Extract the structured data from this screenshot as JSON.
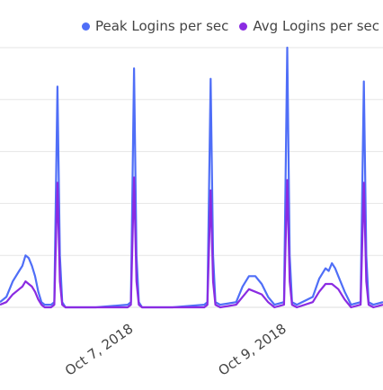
{
  "chart_data": {
    "type": "line",
    "title": "",
    "xlabel": "",
    "ylabel": "",
    "grid": true,
    "legend_position": "top-right",
    "x_tick_labels": [
      "Oct 7, 2018",
      "Oct 9, 2018"
    ],
    "x_range": [
      "2018-10-05 06:00",
      "2018-10-10 06:00"
    ],
    "y_range": [
      0,
      1
    ],
    "series": [
      {
        "name": "Peak Logins per sec",
        "color": "#4f6ef7",
        "points": [
          [
            "2018-10-05 06:00",
            0.02
          ],
          [
            "2018-10-05 08:00",
            0.04
          ],
          [
            "2018-10-05 10:00",
            0.1
          ],
          [
            "2018-10-05 12:00",
            0.14
          ],
          [
            "2018-10-05 13:00",
            0.16
          ],
          [
            "2018-10-05 14:00",
            0.2
          ],
          [
            "2018-10-05 15:00",
            0.19
          ],
          [
            "2018-10-05 16:00",
            0.16
          ],
          [
            "2018-10-05 17:00",
            0.12
          ],
          [
            "2018-10-05 18:00",
            0.06
          ],
          [
            "2018-10-05 19:00",
            0.02
          ],
          [
            "2018-10-05 20:00",
            0.01
          ],
          [
            "2018-10-05 22:00",
            0.01
          ],
          [
            "2018-10-05 23:00",
            0.02
          ],
          [
            "2018-10-06 00:00",
            0.85
          ],
          [
            "2018-10-06 00:45",
            0.2
          ],
          [
            "2018-10-06 01:30",
            0.02
          ],
          [
            "2018-10-06 02:30",
            0.0
          ],
          [
            "2018-10-06 12:00",
            0.0
          ],
          [
            "2018-10-06 22:00",
            0.01
          ],
          [
            "2018-10-06 23:00",
            0.02
          ],
          [
            "2018-10-07 00:00",
            0.92
          ],
          [
            "2018-10-07 00:45",
            0.2
          ],
          [
            "2018-10-07 01:30",
            0.02
          ],
          [
            "2018-10-07 02:30",
            0.0
          ],
          [
            "2018-10-07 12:00",
            0.0
          ],
          [
            "2018-10-07 22:00",
            0.01
          ],
          [
            "2018-10-07 23:00",
            0.02
          ],
          [
            "2018-10-08 00:00",
            0.88
          ],
          [
            "2018-10-08 00:45",
            0.2
          ],
          [
            "2018-10-08 01:30",
            0.02
          ],
          [
            "2018-10-08 03:00",
            0.01
          ],
          [
            "2018-10-08 08:00",
            0.02
          ],
          [
            "2018-10-08 10:00",
            0.08
          ],
          [
            "2018-10-08 12:00",
            0.12
          ],
          [
            "2018-10-08 14:00",
            0.12
          ],
          [
            "2018-10-08 16:00",
            0.09
          ],
          [
            "2018-10-08 18:00",
            0.04
          ],
          [
            "2018-10-08 20:00",
            0.01
          ],
          [
            "2018-10-08 23:00",
            0.02
          ],
          [
            "2018-10-09 00:00",
            1.0
          ],
          [
            "2018-10-09 00:45",
            0.2
          ],
          [
            "2018-10-09 01:30",
            0.02
          ],
          [
            "2018-10-09 03:00",
            0.01
          ],
          [
            "2018-10-09 08:00",
            0.04
          ],
          [
            "2018-10-09 10:00",
            0.11
          ],
          [
            "2018-10-09 12:00",
            0.15
          ],
          [
            "2018-10-09 13:00",
            0.14
          ],
          [
            "2018-10-09 14:00",
            0.17
          ],
          [
            "2018-10-09 15:00",
            0.15
          ],
          [
            "2018-10-09 16:00",
            0.12
          ],
          [
            "2018-10-09 18:00",
            0.06
          ],
          [
            "2018-10-09 20:00",
            0.01
          ],
          [
            "2018-10-09 23:00",
            0.02
          ],
          [
            "2018-10-10 00:00",
            0.87
          ],
          [
            "2018-10-10 00:45",
            0.2
          ],
          [
            "2018-10-10 01:30",
            0.02
          ],
          [
            "2018-10-10 03:00",
            0.01
          ],
          [
            "2018-10-10 06:00",
            0.02
          ]
        ]
      },
      {
        "name": "Avg Logins per sec",
        "color": "#8a2be2",
        "points": [
          [
            "2018-10-05 06:00",
            0.01
          ],
          [
            "2018-10-05 08:00",
            0.02
          ],
          [
            "2018-10-05 10:00",
            0.05
          ],
          [
            "2018-10-05 12:00",
            0.07
          ],
          [
            "2018-10-05 13:00",
            0.08
          ],
          [
            "2018-10-05 14:00",
            0.1
          ],
          [
            "2018-10-05 15:00",
            0.09
          ],
          [
            "2018-10-05 16:00",
            0.08
          ],
          [
            "2018-10-05 17:00",
            0.06
          ],
          [
            "2018-10-05 18:00",
            0.03
          ],
          [
            "2018-10-05 19:00",
            0.01
          ],
          [
            "2018-10-05 20:00",
            0.0
          ],
          [
            "2018-10-05 22:00",
            0.0
          ],
          [
            "2018-10-05 23:00",
            0.01
          ],
          [
            "2018-10-06 00:00",
            0.48
          ],
          [
            "2018-10-06 00:45",
            0.1
          ],
          [
            "2018-10-06 01:30",
            0.01
          ],
          [
            "2018-10-06 02:30",
            0.0
          ],
          [
            "2018-10-06 12:00",
            0.0
          ],
          [
            "2018-10-06 22:00",
            0.0
          ],
          [
            "2018-10-06 23:00",
            0.01
          ],
          [
            "2018-10-07 00:00",
            0.5
          ],
          [
            "2018-10-07 00:45",
            0.1
          ],
          [
            "2018-10-07 01:30",
            0.01
          ],
          [
            "2018-10-07 02:30",
            0.0
          ],
          [
            "2018-10-07 12:00",
            0.0
          ],
          [
            "2018-10-07 22:00",
            0.0
          ],
          [
            "2018-10-07 23:00",
            0.01
          ],
          [
            "2018-10-08 00:00",
            0.45
          ],
          [
            "2018-10-08 00:45",
            0.1
          ],
          [
            "2018-10-08 01:30",
            0.01
          ],
          [
            "2018-10-08 03:00",
            0.0
          ],
          [
            "2018-10-08 08:00",
            0.01
          ],
          [
            "2018-10-08 10:00",
            0.04
          ],
          [
            "2018-10-08 12:00",
            0.07
          ],
          [
            "2018-10-08 14:00",
            0.06
          ],
          [
            "2018-10-08 16:00",
            0.05
          ],
          [
            "2018-10-08 18:00",
            0.02
          ],
          [
            "2018-10-08 20:00",
            0.0
          ],
          [
            "2018-10-08 23:00",
            0.01
          ],
          [
            "2018-10-09 00:00",
            0.49
          ],
          [
            "2018-10-09 00:45",
            0.1
          ],
          [
            "2018-10-09 01:30",
            0.01
          ],
          [
            "2018-10-09 03:00",
            0.0
          ],
          [
            "2018-10-09 08:00",
            0.02
          ],
          [
            "2018-10-09 10:00",
            0.06
          ],
          [
            "2018-10-09 12:00",
            0.09
          ],
          [
            "2018-10-09 14:00",
            0.09
          ],
          [
            "2018-10-09 16:00",
            0.07
          ],
          [
            "2018-10-09 18:00",
            0.03
          ],
          [
            "2018-10-09 20:00",
            0.0
          ],
          [
            "2018-10-09 23:00",
            0.01
          ],
          [
            "2018-10-10 00:00",
            0.48
          ],
          [
            "2018-10-10 00:45",
            0.1
          ],
          [
            "2018-10-10 01:30",
            0.01
          ],
          [
            "2018-10-10 03:00",
            0.0
          ],
          [
            "2018-10-10 06:00",
            0.01
          ]
        ]
      }
    ]
  },
  "colors": {
    "peak": "#4f6ef7",
    "avg": "#8a2be2",
    "grid": "#e6e6e6",
    "text": "#444444"
  }
}
